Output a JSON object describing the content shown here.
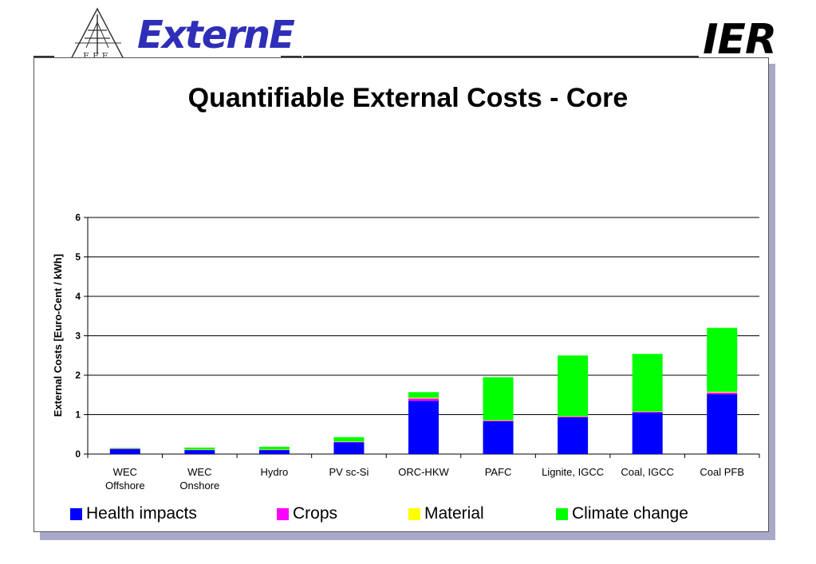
{
  "header": {
    "logo_letters": "EFE",
    "brand_left": "ExternE",
    "brand_right": "IER"
  },
  "slide": {
    "title": "Quantifiable External Costs - Core"
  },
  "colors": {
    "health": "#0000ff",
    "crops": "#ff00ff",
    "material": "#ffff00",
    "climate": "#00ff00",
    "frame_shadow": "#a8a8c8",
    "brand": "#2e2eb8"
  },
  "chart_data": {
    "type": "bar",
    "stacked": true,
    "title": "Quantifiable External Costs - Core",
    "ylabel": "External Costs [Euro-Cent / kWh]",
    "xlabel": "",
    "ylim": [
      0,
      6
    ],
    "yticks": [
      0,
      1,
      2,
      3,
      4,
      5,
      6
    ],
    "grid": true,
    "legend_position": "bottom",
    "categories": [
      [
        "WEC",
        "Offshore"
      ],
      [
        "WEC",
        "Onshore"
      ],
      [
        "Hydro"
      ],
      [
        "PV sc-Si"
      ],
      [
        "ORC-HKW"
      ],
      [
        "PAFC"
      ],
      [
        "Lignite, IGCC"
      ],
      [
        "Coal, IGCC"
      ],
      [
        "Coal PFB"
      ]
    ],
    "series": [
      {
        "name": "Health impacts",
        "color": "#0000ff",
        "values": [
          0.13,
          0.1,
          0.1,
          0.3,
          1.35,
          0.83,
          0.93,
          1.05,
          1.52
        ]
      },
      {
        "name": "Crops",
        "color": "#ff00ff",
        "values": [
          0.01,
          0.01,
          0.01,
          0.01,
          0.06,
          0.02,
          0.02,
          0.02,
          0.04
        ]
      },
      {
        "name": "Material",
        "color": "#ffff00",
        "values": [
          0.005,
          0.005,
          0.005,
          0.01,
          0.02,
          0.01,
          0.01,
          0.01,
          0.02
        ]
      },
      {
        "name": "Climate change",
        "color": "#00ff00",
        "values": [
          0.005,
          0.05,
          0.07,
          0.11,
          0.14,
          1.09,
          1.54,
          1.46,
          1.62
        ]
      }
    ]
  }
}
